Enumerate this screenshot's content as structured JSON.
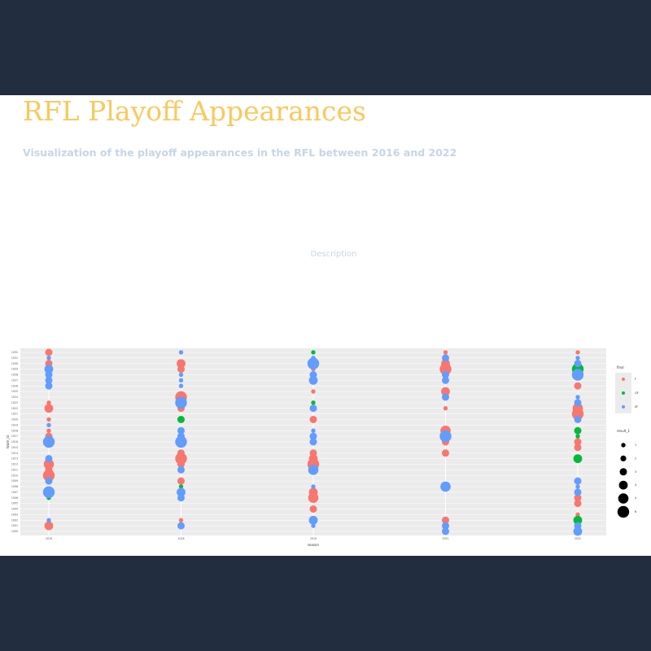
{
  "header": {
    "title": "RFL Playoff Appearances",
    "subtitle": "Visualization of the playoff appearances in the RFL between 2016 and 2022"
  },
  "description": "Description",
  "chart_data": {
    "type": "scatter",
    "x_label": "season",
    "y_label": "team_id",
    "categories": [
      "2016",
      "2018",
      "2019",
      "2021",
      "2022"
    ],
    "y_categories": [
      1032,
      1031,
      1030,
      1029,
      1028,
      1027,
      1026,
      1025,
      1024,
      1023,
      1022,
      1021,
      1020,
      1019,
      1018,
      1017,
      1016,
      1015,
      1014,
      1013,
      1012,
      1011,
      1010,
      1009,
      1008,
      1007,
      1006,
      1005,
      1004,
      1003,
      1002,
      1001,
      1000
    ],
    "color_legend_title": "final",
    "size_legend_title": "result_1",
    "size_legend": [
      1,
      2,
      3,
      4,
      5,
      6
    ],
    "series": [
      {
        "name": "F",
        "color": "#f8766d",
        "x": [
          "2016",
          "2016",
          "2016",
          "2016",
          "2016",
          "2016",
          "2016",
          "2016",
          "2016",
          "2016",
          "2016",
          "2018",
          "2018",
          "2018",
          "2018",
          "2018",
          "2018",
          "2018",
          "2018",
          "2018",
          "2019",
          "2019",
          "2019",
          "2019",
          "2019",
          "2019",
          "2019",
          "2019",
          "2019",
          "2021",
          "2021",
          "2021",
          "2021",
          "2021",
          "2021",
          "2021",
          "2021",
          "2021",
          "2022",
          "2022",
          "2022",
          "2022",
          "2022",
          "2022",
          "2022",
          "2022",
          "2022"
        ],
        "y": [
          1032,
          1030,
          1023,
          1022,
          1020,
          1018,
          1017,
          1012,
          1011,
          1010,
          1001,
          1030,
          1029,
          1024,
          1022,
          1014,
          1013,
          1012,
          1009,
          1002,
          1029,
          1025,
          1020,
          1014,
          1013,
          1012,
          1007,
          1006,
          1004,
          1032,
          1030,
          1029,
          1025,
          1022,
          1018,
          1016,
          1014,
          1002,
          1032,
          1026,
          1022,
          1021,
          1016,
          1015,
          1006,
          1005,
          1003
        ],
        "values": [
          3,
          3,
          1,
          4,
          1,
          1,
          3,
          5,
          3,
          6,
          4,
          4,
          3,
          6,
          3,
          3,
          6,
          3,
          3,
          1,
          1,
          1,
          3,
          3,
          4,
          6,
          4,
          5,
          3,
          1,
          4,
          6,
          4,
          1,
          5,
          3,
          3,
          3,
          1,
          3,
          5,
          6,
          3,
          3,
          3,
          3,
          1
        ]
      },
      {
        "name": "QF",
        "color": "#00ba38",
        "x": [
          "2016",
          "2018",
          "2018",
          "2019",
          "2019",
          "2022",
          "2022",
          "2022",
          "2022",
          "2022"
        ],
        "y": [
          1006,
          1020,
          1008,
          1032,
          1023,
          1029,
          1018,
          1017,
          1013,
          1002
        ],
        "values": [
          1,
          3,
          1,
          1,
          1,
          6,
          3,
          1,
          4,
          4
        ]
      },
      {
        "name": "SF",
        "color": "#619cff",
        "x": [
          "2016",
          "2016",
          "2016",
          "2016",
          "2016",
          "2016",
          "2016",
          "2016",
          "2016",
          "2016",
          "2016",
          "2018",
          "2018",
          "2018",
          "2018",
          "2018",
          "2018",
          "2018",
          "2018",
          "2018",
          "2018",
          "2018",
          "2018",
          "2019",
          "2019",
          "2019",
          "2019",
          "2019",
          "2019",
          "2019",
          "2019",
          "2019",
          "2019",
          "2019",
          "2019",
          "2021",
          "2021",
          "2021",
          "2021",
          "2021",
          "2021",
          "2021",
          "2021",
          "2022",
          "2022",
          "2022",
          "2022",
          "2022",
          "2022",
          "2022",
          "2022",
          "2022",
          "2022",
          "2022"
        ],
        "y": [
          1031,
          1029,
          1028,
          1027,
          1026,
          1019,
          1016,
          1013,
          1009,
          1007,
          1002,
          1032,
          1028,
          1027,
          1026,
          1023,
          1018,
          1017,
          1016,
          1011,
          1007,
          1006,
          1001,
          1031,
          1030,
          1028,
          1027,
          1022,
          1018,
          1017,
          1016,
          1011,
          1008,
          1002,
          1001,
          1031,
          1028,
          1027,
          1024,
          1017,
          1008,
          1001,
          1000,
          1031,
          1030,
          1028,
          1024,
          1023,
          1020,
          1009,
          1008,
          1007,
          1001,
          1000
        ],
        "values": [
          1,
          4,
          3,
          3,
          3,
          1,
          6,
          3,
          3,
          6,
          1,
          1,
          1,
          1,
          1,
          6,
          3,
          3,
          6,
          3,
          4,
          3,
          3,
          1,
          6,
          3,
          4,
          3,
          1,
          3,
          3,
          5,
          1,
          4,
          1,
          3,
          3,
          3,
          3,
          6,
          5,
          3,
          3,
          1,
          3,
          6,
          1,
          3,
          3,
          3,
          1,
          3,
          3,
          4
        ]
      }
    ],
    "grid": true
  }
}
